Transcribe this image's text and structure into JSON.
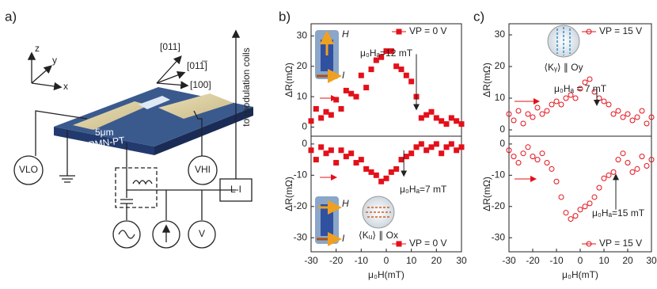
{
  "panel_labels": [
    "a)",
    "b)",
    "c)"
  ],
  "diagram": {
    "axes": [
      "z",
      "y",
      "x"
    ],
    "crystal_axes": [
      "[011]",
      "[011̅]",
      "[100]"
    ],
    "scale": "5μm",
    "substrate": "PMN-PT",
    "probes": [
      "VLO",
      "VHI"
    ],
    "coils": "to modulation coils",
    "lockin": "L-I",
    "voltmeter": "V"
  },
  "insets": {
    "field": "H",
    "current": "I",
    "b_state": "⟨Kᵤ⟩ ∥ Ox",
    "c_state": "⟨Kᵧ⟩ ∥ Oy"
  },
  "chart_data": [
    {
      "type": "scatter",
      "marker": "square",
      "filled": true,
      "legend": "upper right",
      "ylabel": "ΔR(mΩ)",
      "annotation": "μ₀Hₐ=12 mT",
      "xlim": [
        -30,
        30
      ],
      "ylim": [
        -3,
        34
      ],
      "yticks": [
        0,
        10,
        20,
        30
      ],
      "x": [
        -30,
        -28,
        -26,
        -24,
        -22,
        -20,
        -18,
        -16,
        -14,
        -12,
        -10,
        -8,
        -6,
        -4,
        -2,
        0,
        2,
        4,
        6,
        8,
        10,
        12,
        14,
        16,
        18,
        20,
        22,
        24,
        26,
        28,
        30
      ],
      "series": [
        {
          "name": "VP = 0 V",
          "color": "#e3101a",
          "values": [
            2,
            6,
            3,
            5,
            4,
            9,
            6,
            12,
            11,
            10,
            17,
            13,
            19,
            22,
            23,
            25,
            25,
            20,
            19,
            17,
            15,
            10,
            3,
            4,
            5,
            3,
            2,
            1,
            3,
            2,
            1
          ]
        }
      ]
    },
    {
      "type": "scatter",
      "marker": "square",
      "filled": true,
      "legend": "lower right",
      "ylabel": "ΔR(mΩ)",
      "xlabel": "μ₀H(mT)",
      "annotation": "μ₀Hₐ=7 mT",
      "xlim": [
        -30,
        30
      ],
      "ylim": [
        -34.5,
        2.5
      ],
      "yticks": [
        -30,
        -20,
        -10,
        0
      ],
      "xticks": [
        -30,
        -20,
        -10,
        0,
        10,
        20,
        30
      ],
      "x": [
        -30,
        -28,
        -26,
        -24,
        -22,
        -20,
        -18,
        -16,
        -14,
        -12,
        -10,
        -8,
        -6,
        -4,
        -2,
        0,
        2,
        4,
        6,
        8,
        10,
        12,
        14,
        16,
        18,
        20,
        22,
        24,
        26,
        28,
        30
      ],
      "series": [
        {
          "name": "VP = 0 V",
          "color": "#e3101a",
          "values": [
            -2,
            -5,
            -1,
            -3,
            -2,
            -6,
            -2,
            -4,
            -3,
            -6,
            -5,
            -8,
            -9,
            -10,
            -12,
            -11,
            -9,
            -8,
            -5,
            -4,
            -3,
            -1,
            0,
            -2,
            -1,
            0,
            -3,
            -1,
            0,
            -2,
            -1
          ]
        }
      ]
    },
    {
      "type": "scatter",
      "marker": "circle",
      "filled": false,
      "legend": "upper right",
      "ylabel": "ΔR(mΩ)",
      "annotation": "μ₀Hₐ = 7 mT",
      "xlim": [
        -30,
        30
      ],
      "ylim": [
        -2,
        33.5
      ],
      "yticks": [
        0,
        10,
        20,
        30
      ],
      "x": [
        -30,
        -28,
        -26,
        -24,
        -22,
        -20,
        -18,
        -16,
        -14,
        -12,
        -10,
        -8,
        -6,
        -4,
        -2,
        0,
        2,
        4,
        6,
        8,
        10,
        12,
        14,
        16,
        18,
        20,
        22,
        24,
        26,
        28,
        30
      ],
      "series": [
        {
          "name": "VP = 15 V",
          "color": "#e3101a",
          "values": [
            5,
            3,
            6,
            2,
            5,
            4,
            7,
            5,
            6,
            8,
            9,
            8,
            10,
            11,
            10,
            13,
            15,
            16,
            12,
            10,
            9,
            8,
            5,
            6,
            4,
            5,
            3,
            4,
            6,
            2,
            4
          ]
        }
      ]
    },
    {
      "type": "scatter",
      "marker": "circle",
      "filled": false,
      "legend": "lower right",
      "ylabel": "ΔR(mΩ)",
      "xlabel": "μ₀H(mT)",
      "annotation": "μ₀Hₐ=15 mT",
      "xlim": [
        -30,
        30
      ],
      "ylim": [
        -34.5,
        2.5
      ],
      "yticks": [
        -30,
        -20,
        -10,
        0
      ],
      "xticks": [
        -30,
        -20,
        -10,
        0,
        10,
        20,
        30
      ],
      "x": [
        -30,
        -28,
        -26,
        -24,
        -22,
        -20,
        -18,
        -16,
        -14,
        -12,
        -10,
        -8,
        -6,
        -4,
        -2,
        0,
        2,
        4,
        6,
        8,
        10,
        12,
        14,
        16,
        18,
        20,
        22,
        24,
        26,
        28,
        30
      ],
      "series": [
        {
          "name": "VP = 15 V",
          "color": "#e3101a",
          "values": [
            -2,
            -4,
            -6,
            -3,
            -1,
            -4,
            -5,
            -3,
            -6,
            -8,
            -12,
            -17,
            -22,
            -24,
            -23,
            -21,
            -20,
            -19,
            -17,
            -14,
            -11,
            -10,
            -9,
            -5,
            -3,
            -6,
            -9,
            -8,
            -4,
            -7,
            -5
          ]
        }
      ]
    }
  ]
}
